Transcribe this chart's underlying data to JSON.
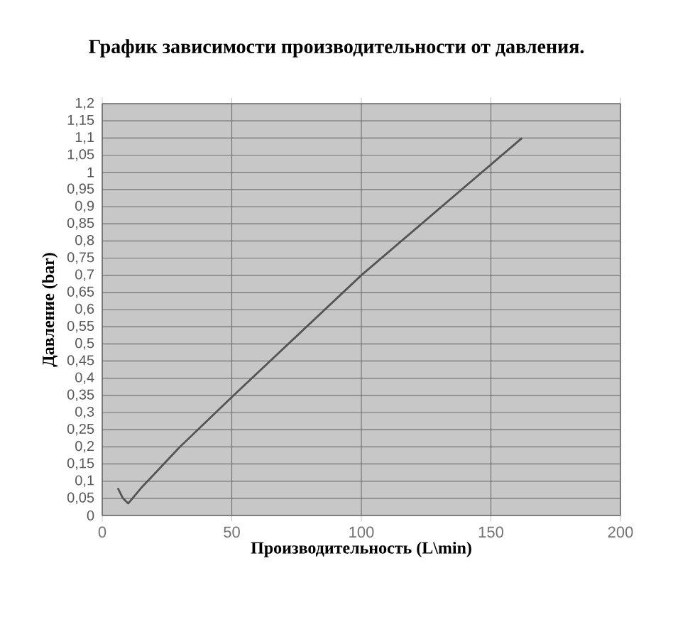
{
  "chart_data": {
    "type": "line",
    "title": "График зависимости производительности от давления.",
    "xlabel": "Производительность (L\\min)",
    "ylabel": "Давление (bar)",
    "x": [
      6,
      8,
      10,
      15,
      20,
      30,
      50,
      100,
      162
    ],
    "series": [
      {
        "color": "#555555",
        "values": [
          0.08,
          0.05,
          0.035,
          0.08,
          0.12,
          0.2,
          0.345,
          0.7,
          1.1
        ]
      }
    ],
    "xlim": [
      0,
      200
    ],
    "xticks": [
      0,
      50,
      100,
      150,
      200
    ],
    "ylim": [
      0,
      1.2
    ],
    "yticks": [
      0,
      {
        "value": 0.05,
        "label": "0,05"
      },
      {
        "value": 0.1,
        "label": "0,1"
      },
      {
        "value": 0.15,
        "label": "0,15"
      },
      {
        "value": 0.2,
        "label": "0,2"
      },
      {
        "value": 0.25,
        "label": "0,25"
      },
      {
        "value": 0.3,
        "label": "0,3"
      },
      {
        "value": 0.35,
        "label": "0,35"
      },
      {
        "value": 0.4,
        "label": "0,4"
      },
      {
        "value": 0.45,
        "label": "0,45"
      },
      {
        "value": 0.5,
        "label": "0,5"
      },
      {
        "value": 0.55,
        "label": "0,55"
      },
      {
        "value": 0.6,
        "label": "0,6"
      },
      {
        "value": 0.65,
        "label": "0,65"
      },
      {
        "value": 0.7,
        "label": "0,7"
      },
      {
        "value": 0.75,
        "label": "0,75"
      },
      {
        "value": 0.8,
        "label": "0,8"
      },
      {
        "value": 0.85,
        "label": "0,85"
      },
      {
        "value": 0.9,
        "label": "0,9"
      },
      {
        "value": 0.95,
        "label": "0,95"
      },
      1,
      {
        "value": 1.05,
        "label": "1,05"
      },
      {
        "value": 1.1,
        "label": "1,1"
      },
      {
        "value": 1.15,
        "label": "1,15"
      },
      {
        "value": 1.2,
        "label": "1,2"
      }
    ],
    "grid": true,
    "marker": "none",
    "line_style": "solid"
  }
}
